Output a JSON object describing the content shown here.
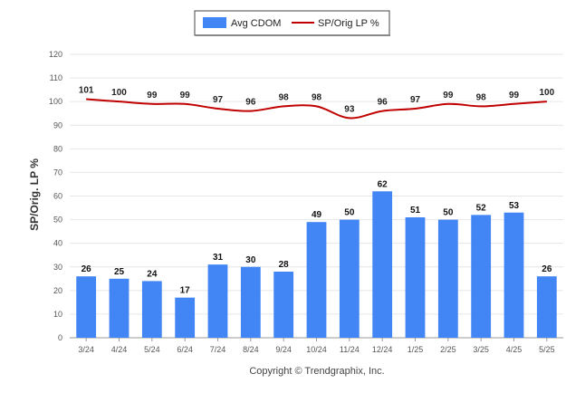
{
  "chart_data": {
    "type": "bar",
    "categories": [
      "3/24",
      "4/24",
      "5/24",
      "6/24",
      "7/24",
      "8/24",
      "9/24",
      "10/24",
      "11/24",
      "12/24",
      "1/25",
      "2/25",
      "3/25",
      "4/25",
      "5/25"
    ],
    "series": [
      {
        "name": "Avg CDOM",
        "type": "bar",
        "color": "#4285f4",
        "values": [
          26,
          25,
          24,
          17,
          31,
          30,
          28,
          49,
          50,
          62,
          51,
          50,
          52,
          53,
          26
        ]
      },
      {
        "name": "SP/Orig LP %",
        "type": "line",
        "color": "#c00000",
        "values": [
          101,
          100,
          99,
          99,
          97,
          96,
          98,
          98,
          93,
          96,
          97,
          99,
          98,
          99,
          100
        ]
      }
    ],
    "ylabel": "SP/Orig. LP %",
    "xlabel": "",
    "ylim": [
      0,
      120
    ],
    "yticks": [
      0,
      10,
      20,
      30,
      40,
      50,
      60,
      70,
      80,
      90,
      100,
      110,
      120
    ],
    "grid": true,
    "legend_position": "top-center"
  },
  "footer": {
    "copyright": "Copyright © Trendgraphix, Inc."
  }
}
